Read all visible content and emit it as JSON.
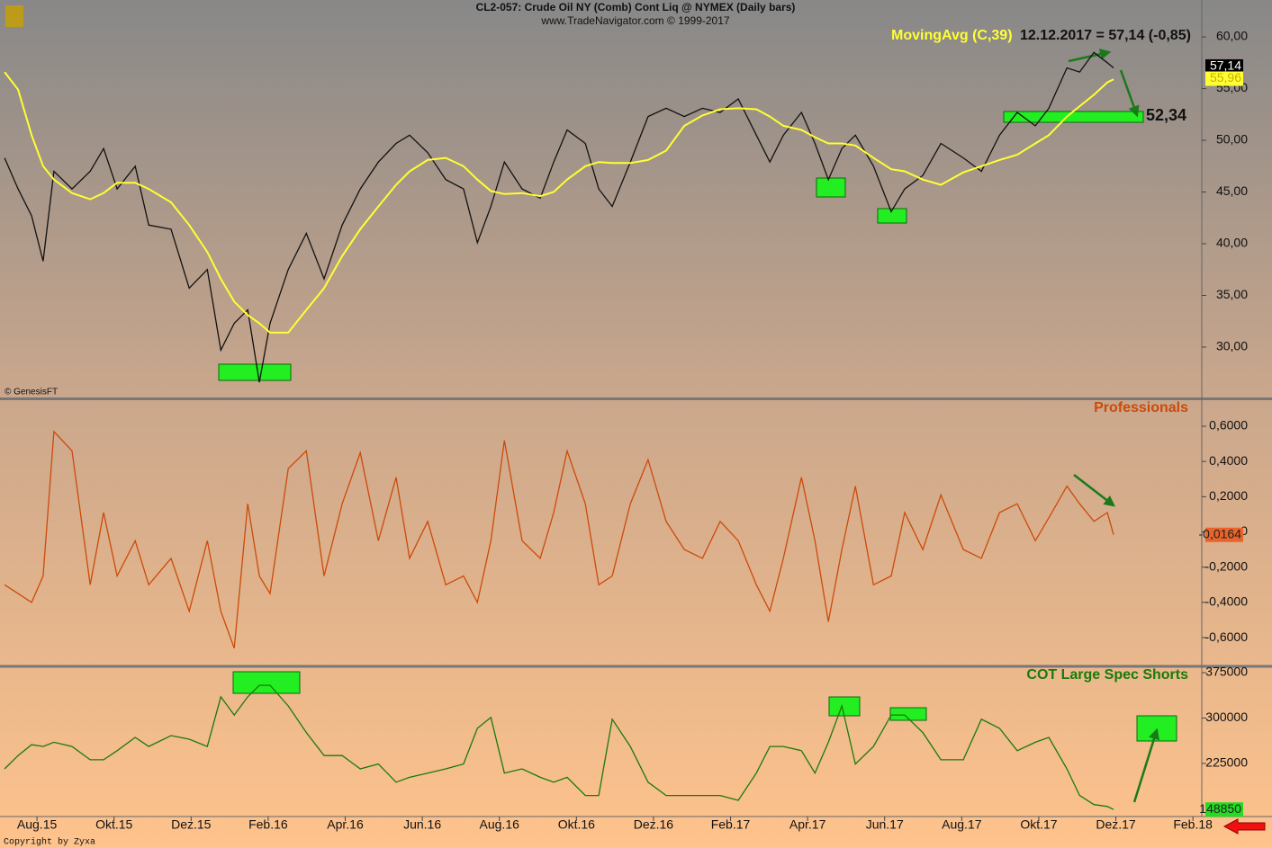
{
  "header": {
    "title": "CL2-057:  Crude Oil NY (Comb) Cont Liq @ NYMEX  (Daily bars)",
    "subtitle": "www.TradeNavigator.com © 1999-2017"
  },
  "footer": "Copyright by Zyxa",
  "chart_data": [
    {
      "type": "line",
      "quote": "12.12.2017 = 57,14 (-0,85)",
      "source": "© GenesisFT",
      "xlim": [
        -0.96,
        30.23
      ],
      "x": [
        -0.84,
        -0.49,
        -0.14,
        0.16,
        0.44,
        0.91,
        1.38,
        1.73,
        2.08,
        2.55,
        2.9,
        3.48,
        3.95,
        4.42,
        4.77,
        5.12,
        5.47,
        5.77,
        6.05,
        6.52,
        6.99,
        7.45,
        7.92,
        8.39,
        8.86,
        9.32,
        9.67,
        10.14,
        10.61,
        11.07,
        11.43,
        11.78,
        12.13,
        12.59,
        13.06,
        13.41,
        13.76,
        14.23,
        14.58,
        14.93,
        15.4,
        15.86,
        16.33,
        16.8,
        17.27,
        17.73,
        18.2,
        18.67,
        19.02,
        19.37,
        19.84,
        20.19,
        20.54,
        20.89,
        21.24,
        21.71,
        22.17,
        22.52,
        22.99,
        23.46,
        24.04,
        24.51,
        24.98,
        25.44,
        25.91,
        26.26,
        26.73,
        27.06,
        27.43,
        27.78,
        27.94
      ],
      "ylim": [
        25.04,
        63.57
      ],
      "yticks": [
        {
          "value": 30,
          "label": "30,00"
        },
        {
          "value": 35,
          "label": "35,00"
        },
        {
          "value": 40,
          "label": "40,00"
        },
        {
          "value": 45,
          "label": "45,00"
        },
        {
          "value": 50,
          "label": "50,00"
        },
        {
          "value": 55,
          "label": "55,00"
        },
        {
          "value": 60,
          "label": "60,00"
        }
      ],
      "series": [
        {
          "color": "#111111",
          "values": [
            48.3,
            45.3,
            42.7,
            38.3,
            47,
            45.3,
            47,
            49.2,
            45.3,
            47.5,
            41.8,
            41.4,
            35.7,
            37.5,
            29.7,
            32.3,
            33.6,
            26.6,
            32.3,
            37.5,
            41,
            36.6,
            41.8,
            45.3,
            47.9,
            49.7,
            50.5,
            48.8,
            46.2,
            45.3,
            40.1,
            43.6,
            47.9,
            45.3,
            44.4,
            47.9,
            51,
            49.7,
            45.3,
            43.6,
            47.9,
            52.3,
            53.1,
            52.3,
            53.1,
            52.7,
            54,
            50.5,
            47.9,
            50.5,
            52.7,
            49.7,
            46.2,
            49.2,
            50.5,
            47.5,
            43.1,
            45.3,
            46.6,
            49.7,
            48.3,
            47,
            50.5,
            52.7,
            51.4,
            53.1,
            57,
            56.6,
            58.5,
            57.5,
            57
          ]
        },
        {
          "name": "MovingAvg (C,39)",
          "color": "#ffff33",
          "values": [
            56.6,
            54.9,
            50.5,
            47.5,
            46.2,
            44.9,
            44.3,
            44.9,
            45.9,
            45.9,
            45.3,
            44,
            41.8,
            39.2,
            36.6,
            34.4,
            33.1,
            32.3,
            31.4,
            31.4,
            33.6,
            35.7,
            38.8,
            41.4,
            43.6,
            45.7,
            47,
            48.1,
            48.3,
            47.5,
            46.2,
            45.1,
            44.8,
            44.9,
            44.6,
            45,
            46.2,
            47.5,
            47.9,
            47.8,
            47.8,
            48.1,
            49,
            51.4,
            52.4,
            53,
            53.1,
            53,
            52.3,
            51.4,
            51,
            50.3,
            49.7,
            49.7,
            49.5,
            48.3,
            47.2,
            47,
            46.2,
            45.7,
            46.9,
            47.5,
            48.1,
            48.6,
            49.7,
            50.5,
            52.3,
            53.3,
            54.4,
            55.6,
            55.9
          ]
        }
      ],
      "level": {
        "value": 52.34,
        "label": "52,34"
      },
      "last_labels": [
        {
          "value": 57.14,
          "label": "57,14"
        },
        {
          "value": 55.96,
          "label": "55,96"
        }
      ]
    },
    {
      "type": "line",
      "title": "Professionals",
      "xlim": [
        -0.96,
        30.23
      ],
      "x": [
        -0.84,
        -0.49,
        -0.14,
        0.16,
        0.44,
        0.91,
        1.38,
        1.73,
        2.08,
        2.55,
        2.9,
        3.48,
        3.95,
        4.42,
        4.77,
        5.12,
        5.47,
        5.77,
        6.05,
        6.52,
        6.99,
        7.45,
        7.92,
        8.39,
        8.86,
        9.32,
        9.67,
        10.14,
        10.61,
        11.07,
        11.43,
        11.78,
        12.13,
        12.59,
        13.06,
        13.41,
        13.76,
        14.23,
        14.58,
        14.93,
        15.4,
        15.86,
        16.33,
        16.8,
        17.27,
        17.73,
        18.2,
        18.67,
        19.02,
        19.37,
        19.84,
        20.19,
        20.54,
        20.89,
        21.24,
        21.71,
        22.17,
        22.52,
        22.99,
        23.46,
        24.04,
        24.51,
        24.98,
        25.44,
        25.91,
        26.26,
        26.73,
        27.06,
        27.43,
        27.78,
        27.94
      ],
      "ylim": [
        -0.758,
        0.748
      ],
      "yticks": [
        {
          "value": -0.6,
          "label": "-0,6000"
        },
        {
          "value": -0.4,
          "label": "-0,4000"
        },
        {
          "value": -0.2,
          "label": "-0,2000"
        },
        0,
        {
          "value": 0.2,
          "label": "0,2000"
        },
        {
          "value": 0.4,
          "label": "0,4000"
        },
        {
          "value": 0.6,
          "label": "0,6000"
        }
      ],
      "series": [
        {
          "color": "#cc4a0a",
          "values": [
            -0.3,
            -0.35,
            -0.4,
            -0.25,
            0.57,
            0.46,
            -0.3,
            0.11,
            -0.25,
            -0.05,
            -0.3,
            -0.15,
            -0.45,
            -0.05,
            -0.45,
            -0.66,
            0.16,
            -0.25,
            -0.35,
            0.36,
            0.46,
            -0.25,
            0.16,
            0.45,
            -0.05,
            0.31,
            -0.15,
            0.06,
            -0.3,
            -0.25,
            -0.4,
            -0.05,
            0.52,
            -0.05,
            -0.15,
            0.11,
            0.46,
            0.16,
            -0.3,
            -0.25,
            0.16,
            0.41,
            0.06,
            -0.1,
            -0.15,
            0.06,
            -0.05,
            -0.3,
            -0.45,
            -0.15,
            0.31,
            -0.05,
            -0.51,
            -0.1,
            0.26,
            -0.3,
            -0.25,
            0.11,
            -0.1,
            0.21,
            -0.1,
            -0.15,
            0.11,
            0.16,
            -0.05,
            0.08,
            0.26,
            0.16,
            0.06,
            0.11,
            -0.0164
          ]
        }
      ],
      "last_labels": [
        {
          "value": -0.0164,
          "label": "-0,0164"
        }
      ]
    },
    {
      "type": "line",
      "title": "COT Large Spec Shorts",
      "xlim": [
        -0.96,
        30.23
      ],
      "xticks": [
        {
          "value": 0,
          "label": "Aug.15"
        },
        {
          "value": 2,
          "label": "Okt.15"
        },
        {
          "value": 4,
          "label": "Dez.15"
        },
        {
          "value": 6,
          "label": "Feb.16"
        },
        {
          "value": 8,
          "label": "Apr.16"
        },
        {
          "value": 10,
          "label": "Jun.16"
        },
        {
          "value": 12,
          "label": "Aug.16"
        },
        {
          "value": 14,
          "label": "Okt.16"
        },
        {
          "value": 16,
          "label": "Dez.16"
        },
        {
          "value": 18,
          "label": "Feb.17"
        },
        {
          "value": 20,
          "label": "Apr.17"
        },
        {
          "value": 22,
          "label": "Jun.17"
        },
        {
          "value": 24,
          "label": "Aug.17"
        },
        {
          "value": 26,
          "label": "Okt.17"
        },
        {
          "value": 28,
          "label": "Dez.17"
        },
        {
          "value": 30,
          "label": "Feb.18"
        }
      ],
      "x": [
        -0.84,
        -0.49,
        -0.14,
        0.16,
        0.44,
        0.91,
        1.38,
        1.73,
        2.08,
        2.55,
        2.9,
        3.48,
        3.95,
        4.42,
        4.77,
        5.12,
        5.47,
        5.77,
        6.05,
        6.52,
        6.99,
        7.45,
        7.92,
        8.39,
        8.86,
        9.32,
        9.67,
        10.14,
        10.61,
        11.07,
        11.43,
        11.78,
        12.13,
        12.59,
        13.06,
        13.41,
        13.76,
        14.23,
        14.58,
        14.93,
        15.4,
        15.86,
        16.33,
        16.8,
        17.27,
        17.73,
        18.2,
        18.67,
        19.02,
        19.37,
        19.84,
        20.19,
        20.54,
        20.89,
        21.24,
        21.71,
        22.17,
        22.52,
        22.99,
        23.46,
        24.04,
        24.51,
        24.98,
        25.44,
        25.91,
        26.26,
        26.73,
        27.06,
        27.43,
        27.78,
        27.94
      ],
      "ylim": [
        137300,
        383900
      ],
      "yticks": [
        225000,
        300000,
        375000
      ],
      "series": [
        {
          "color": "#1a7a0a",
          "values": [
            216000,
            238000,
            256000,
            253000,
            260000,
            253000,
            231000,
            231000,
            246000,
            268000,
            253000,
            271000,
            265000,
            253000,
            335000,
            305000,
            335000,
            354000,
            354000,
            320000,
            276000,
            238000,
            238000,
            216000,
            224000,
            194000,
            202000,
            209000,
            216000,
            224000,
            283000,
            301000,
            209000,
            216000,
            202000,
            194000,
            202000,
            172000,
            172000,
            298000,
            253000,
            194000,
            172000,
            172000,
            172000,
            172000,
            164000,
            209000,
            253000,
            253000,
            246000,
            209000,
            260000,
            320000,
            224000,
            253000,
            305000,
            305000,
            276000,
            231000,
            231000,
            298000,
            283000,
            246000,
            260000,
            268000,
            216000,
            172000,
            157000,
            154000,
            148850
          ]
        }
      ],
      "last_labels": [
        {
          "value": 148850,
          "label": "148850"
        }
      ]
    }
  ]
}
